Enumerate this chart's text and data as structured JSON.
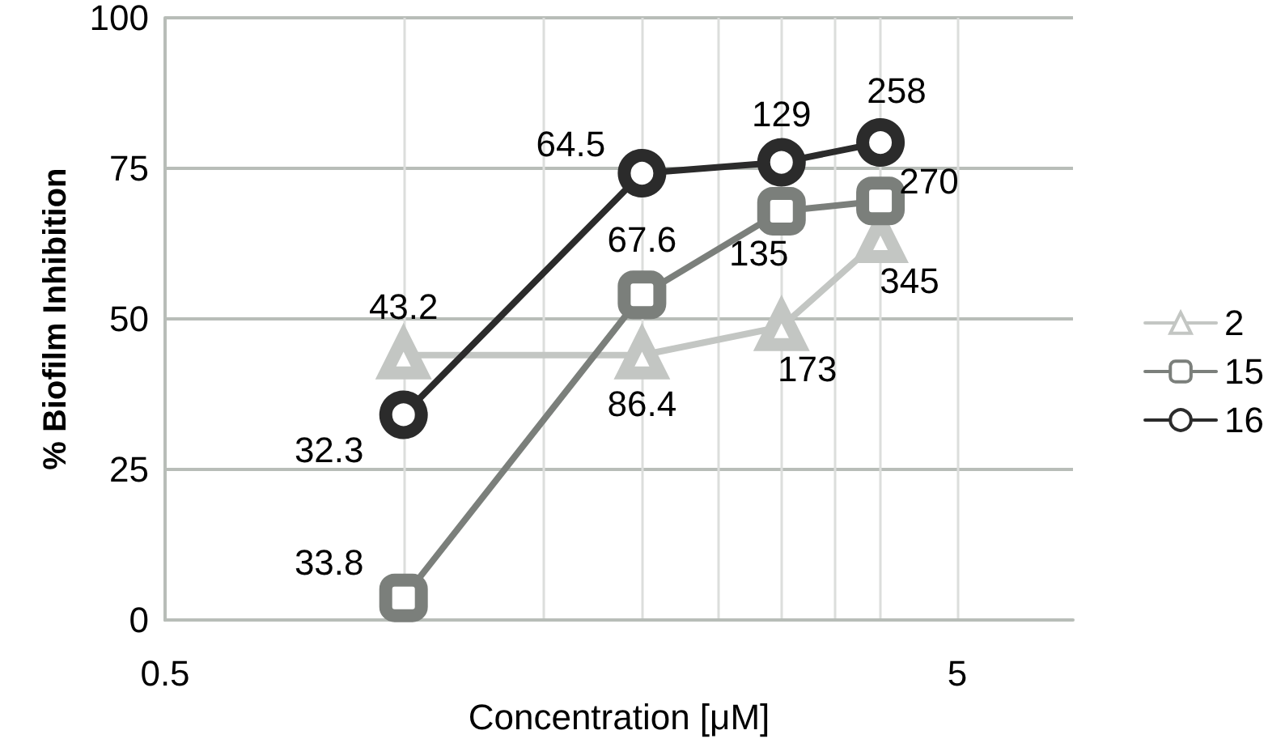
{
  "chart_data": {
    "type": "line",
    "xlabel": "Concentration [μM]",
    "ylabel": "% Biofilm Inhibition",
    "x": [
      1,
      2,
      3,
      4
    ],
    "series": [
      {
        "name": "2",
        "color": "#c3c6c3",
        "marker": "triangle",
        "values": [
          44,
          44,
          48.7,
          63.3
        ]
      },
      {
        "name": "15",
        "color": "#7b7f7b",
        "marker": "square",
        "values": [
          3.7,
          54,
          67.9,
          69.6
        ]
      },
      {
        "name": "16",
        "color": "#2b2b2b",
        "marker": "circle",
        "values": [
          34.1,
          74.2,
          76,
          79.3
        ]
      }
    ],
    "annotations": [
      {
        "text": "43.2",
        "x": 1,
        "y": 44
      },
      {
        "text": "86.4",
        "x": 2,
        "y": 44
      },
      {
        "text": "173",
        "x": 3,
        "y": 48.7
      },
      {
        "text": "345",
        "x": 4,
        "y": 63.3
      },
      {
        "text": "33.8",
        "x": 1,
        "y": 3.7
      },
      {
        "text": "67.6",
        "x": 2,
        "y": 54
      },
      {
        "text": "135",
        "x": 3,
        "y": 67.9
      },
      {
        "text": "270",
        "x": 4,
        "y": 69.6
      },
      {
        "text": "32.3",
        "x": 1,
        "y": 34.1
      },
      {
        "text": "64.5",
        "x": 2,
        "y": 74.2
      },
      {
        "text": "129",
        "x": 3,
        "y": 76
      },
      {
        "text": "258",
        "x": 4,
        "y": 79.3
      }
    ],
    "log": "x",
    "xlim": [
      0.5,
      7
    ],
    "xticks": [
      0.5,
      {
        "value": 1,
        "label": null
      },
      {
        "value": 1.5,
        "label": null
      },
      {
        "value": 2,
        "label": null
      },
      {
        "value": 2.5,
        "label": null
      },
      {
        "value": 3,
        "label": null
      },
      {
        "value": 3.5,
        "label": null
      },
      {
        "value": 4,
        "label": null
      },
      5
    ],
    "ylim": [
      0,
      100
    ],
    "yticks": [
      0,
      25,
      50,
      75,
      100
    ],
    "grid": true,
    "legend": "right",
    "line_style": "solid"
  }
}
